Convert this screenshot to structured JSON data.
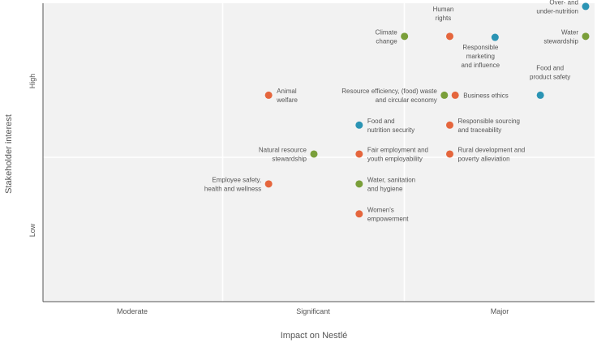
{
  "chart_data": {
    "type": "scatter",
    "title": "",
    "xlabel": "Impact on Nestlé",
    "ylabel": "Stakeholder interest",
    "x_ticks": [
      "Moderate",
      "Significant",
      "Major"
    ],
    "y_ticks": [
      "Low",
      "High"
    ],
    "x_range": [
      0,
      3
    ],
    "y_range": [
      0,
      3
    ],
    "grid": true,
    "colors": {
      "orange": "#e5663d",
      "green": "#7a9f3a",
      "blue": "#2b94b4"
    },
    "points": [
      {
        "label": [
          "Over- and",
          "under-nutrition"
        ],
        "x": 3.0,
        "y": 2.96,
        "color": "blue",
        "anchor": "left"
      },
      {
        "label": [
          "Water",
          "stewardship"
        ],
        "x": 3.0,
        "y": 2.66,
        "color": "green",
        "anchor": "left"
      },
      {
        "label": [
          "Human",
          "rights"
        ],
        "x": 2.25,
        "y": 2.66,
        "color": "orange",
        "anchor": "above"
      },
      {
        "label": [
          "Climate",
          "change"
        ],
        "x": 2.0,
        "y": 2.66,
        "color": "green",
        "anchor": "left"
      },
      {
        "label": [
          "Responsible",
          "marketing",
          "and influence"
        ],
        "x": 2.5,
        "y": 2.65,
        "color": "blue",
        "anchor": "below"
      },
      {
        "label": [
          "Food and",
          "product safety"
        ],
        "x": 2.75,
        "y": 2.07,
        "color": "blue",
        "anchor": "above"
      },
      {
        "label": [
          "Resource efficiency, (food) waste",
          "and circular economy"
        ],
        "x": 2.22,
        "y": 2.07,
        "color": "green",
        "anchor": "left"
      },
      {
        "label": [
          "Business ethics"
        ],
        "x": 2.28,
        "y": 2.07,
        "color": "orange",
        "anchor": "right"
      },
      {
        "label": [
          "Animal",
          "welfare"
        ],
        "x": 1.25,
        "y": 2.07,
        "color": "orange",
        "anchor": "right"
      },
      {
        "label": [
          "Food and",
          "nutrition security"
        ],
        "x": 1.75,
        "y": 1.77,
        "color": "blue",
        "anchor": "right"
      },
      {
        "label": [
          "Responsible sourcing",
          "and traceability"
        ],
        "x": 2.25,
        "y": 1.77,
        "color": "orange",
        "anchor": "right"
      },
      {
        "label": [
          "Natural resource",
          "stewardship"
        ],
        "x": 1.5,
        "y": 1.48,
        "color": "green",
        "anchor": "left"
      },
      {
        "label": [
          "Fair employment and",
          "youth employability"
        ],
        "x": 1.75,
        "y": 1.48,
        "color": "orange",
        "anchor": "right"
      },
      {
        "label": [
          "Rural development and",
          "poverty alleviation"
        ],
        "x": 2.25,
        "y": 1.48,
        "color": "orange",
        "anchor": "right"
      },
      {
        "label": [
          "Employee safety,",
          "health and wellness"
        ],
        "x": 1.25,
        "y": 1.18,
        "color": "orange",
        "anchor": "left"
      },
      {
        "label": [
          "Water, sanitation",
          "and hygiene"
        ],
        "x": 1.75,
        "y": 1.18,
        "color": "green",
        "anchor": "right"
      },
      {
        "label": [
          "Women's",
          "empowerment"
        ],
        "x": 1.75,
        "y": 0.88,
        "color": "orange",
        "anchor": "right"
      }
    ]
  }
}
